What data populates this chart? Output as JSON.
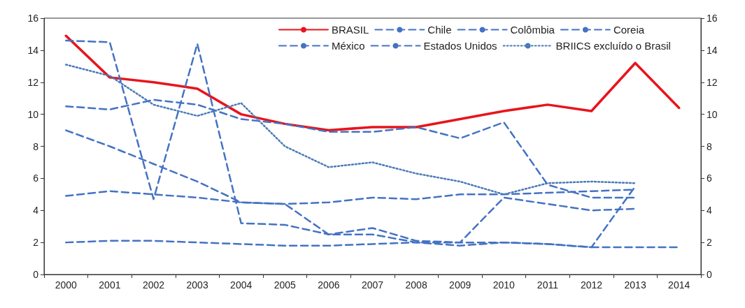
{
  "chart_data": {
    "type": "line",
    "categories": [
      "2000",
      "2001",
      "2002",
      "2003",
      "2004",
      "2005",
      "2006",
      "2007",
      "2008",
      "2009",
      "2010",
      "2011",
      "2012",
      "2013",
      "2014"
    ],
    "series": [
      {
        "name": "BRASIL",
        "color": "#e8141c",
        "line_style": "solid",
        "values": [
          14.9,
          12.3,
          12.0,
          11.6,
          10.0,
          9.4,
          9.0,
          9.2,
          9.2,
          9.7,
          10.2,
          10.6,
          10.2,
          13.2,
          10.4
        ]
      },
      {
        "name": "Chile",
        "color": "#4472c4",
        "line_style": "dashed",
        "values": [
          9.0,
          8.0,
          6.9,
          5.8,
          4.5,
          4.4,
          2.5,
          2.5,
          2.0,
          2.0,
          2.0,
          1.9,
          1.7,
          5.5,
          null
        ]
      },
      {
        "name": "Colômbia",
        "color": "#4472c4",
        "line_style": "dashed",
        "values": [
          10.5,
          10.3,
          10.9,
          10.6,
          9.7,
          9.4,
          8.9,
          8.9,
          9.2,
          8.5,
          9.5,
          5.6,
          4.8,
          4.8,
          null
        ]
      },
      {
        "name": "Coreia",
        "color": "#4472c4",
        "line_style": "dashed",
        "values": [
          4.9,
          5.2,
          5.0,
          4.8,
          4.5,
          4.4,
          4.5,
          4.8,
          4.7,
          5.0,
          5.0,
          5.1,
          5.2,
          5.3,
          null
        ]
      },
      {
        "name": "México",
        "color": "#4472c4",
        "line_style": "dashed",
        "values": [
          14.6,
          14.5,
          4.7,
          14.4,
          3.2,
          3.1,
          2.5,
          2.9,
          2.1,
          2.0,
          4.8,
          4.4,
          4.0,
          4.1,
          null
        ]
      },
      {
        "name": "Estados Unidos",
        "color": "#4472c4",
        "line_style": "dashed",
        "values": [
          2.0,
          2.1,
          2.1,
          2.0,
          1.9,
          1.8,
          1.8,
          1.9,
          2.0,
          1.8,
          2.0,
          1.9,
          1.7,
          1.7,
          1.7
        ]
      },
      {
        "name": "BRIICS excluído o Brasil",
        "color": "#4a7ab8",
        "line_style": "dotted",
        "values": [
          13.1,
          12.4,
          10.6,
          9.9,
          10.7,
          8.0,
          6.7,
          7.0,
          6.3,
          5.8,
          5.0,
          5.7,
          5.8,
          5.7,
          null
        ]
      }
    ],
    "ylim": [
      0,
      16
    ],
    "yticks": [
      0,
      2,
      4,
      6,
      8,
      10,
      12,
      14,
      16
    ],
    "y2lim": [
      0,
      16
    ],
    "y2ticks": [
      0,
      2,
      4,
      6,
      8,
      10,
      12,
      14,
      16
    ],
    "grid": false,
    "legend": "top",
    "marker": "none"
  }
}
